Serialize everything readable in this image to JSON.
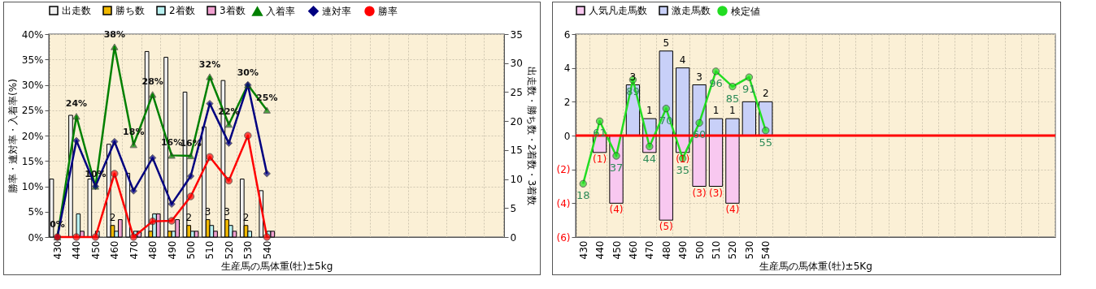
{
  "chart_data": [
    {
      "type": "bar",
      "xlabel": "生産馬の馬体重(牡)±5kg",
      "ylabel": "勝率・連対率・入着率(%)",
      "y2label": "出走数・勝ち数・2着数・3着数",
      "categories": [
        "430",
        "440",
        "450",
        "460",
        "470",
        "480",
        "490",
        "500",
        "510",
        "520",
        "530",
        "540",
        null,
        null,
        null,
        null,
        null,
        null,
        null,
        null,
        null,
        null,
        null,
        null
      ],
      "ylim": [
        0,
        40
      ],
      "yticks": [
        {
          "value": 0,
          "label": "0%"
        },
        {
          "value": 5,
          "label": "5%"
        },
        {
          "value": 10,
          "label": "10%"
        },
        {
          "value": 15,
          "label": "15%"
        },
        {
          "value": 20,
          "label": "20%"
        },
        {
          "value": 25,
          "label": "25%"
        },
        {
          "value": 30,
          "label": "30%"
        },
        {
          "value": 35,
          "label": "35%"
        },
        {
          "value": 40,
          "label": "40%"
        }
      ],
      "y2lim": [
        0,
        35
      ],
      "y2ticks": [
        0,
        5,
        10,
        15,
        20,
        25,
        30,
        35
      ],
      "grid": true,
      "legend": "top",
      "series": [
        {
          "name": "出走数",
          "axis": "y2",
          "color": "#f0f0f0",
          "values": [
            10,
            21,
            10,
            16,
            11,
            32,
            31,
            25,
            19,
            27,
            10,
            8,
            null,
            null,
            null,
            null,
            null,
            null,
            null,
            null,
            null,
            null,
            null,
            null
          ]
        },
        {
          "name": "勝ち数",
          "axis": "y2",
          "color": "#f0b800",
          "values": [
            0,
            0,
            0,
            2,
            0,
            1,
            1,
            2,
            3,
            3,
            2,
            0,
            null,
            null,
            null,
            null,
            null,
            null,
            null,
            null,
            null,
            null,
            null,
            null
          ],
          "value_labels": [
            null,
            null,
            null,
            "2",
            null,
            null,
            null,
            "2",
            "3",
            "3",
            "2",
            null,
            null,
            null,
            null,
            null,
            null,
            null,
            null,
            null,
            null,
            null,
            null,
            null
          ]
        },
        {
          "name": "2着数",
          "axis": "y2",
          "color": "#b8f0f0",
          "values": [
            0,
            4,
            1,
            1,
            1,
            4,
            1,
            1,
            2,
            2,
            1,
            1,
            null,
            null,
            null,
            null,
            null,
            null,
            null,
            null,
            null,
            null,
            null,
            null
          ]
        },
        {
          "name": "3着数",
          "axis": "y2",
          "color": "#f0a0d0",
          "values": [
            0,
            1,
            0,
            3,
            1,
            4,
            3,
            1,
            1,
            1,
            0,
            1,
            null,
            null,
            null,
            null,
            null,
            null,
            null,
            null,
            null,
            null,
            null,
            null
          ]
        },
        {
          "name": "入着率",
          "type": "line",
          "color": "#008000",
          "marker": "triangle",
          "values": [
            0,
            23.8,
            10,
            37.5,
            18.2,
            28.1,
            16.1,
            16,
            31.6,
            22.2,
            30,
            25,
            null,
            null,
            null,
            null,
            null,
            null,
            null,
            null,
            null,
            null,
            null,
            null
          ],
          "value_labels": [
            "0%",
            "24%",
            "10%",
            "38%",
            "18%",
            "28%",
            "16%",
            "16%",
            "32%",
            "22%",
            "30%",
            "25%",
            null,
            null,
            null,
            null,
            null,
            null,
            null,
            null,
            null,
            null,
            null,
            null
          ]
        },
        {
          "name": "連対率",
          "type": "line",
          "color": "#000080",
          "marker": "diamond",
          "values": [
            0,
            19,
            10,
            18.8,
            9.1,
            15.6,
            6.5,
            12,
            26.3,
            18.5,
            30,
            12.5,
            null,
            null,
            null,
            null,
            null,
            null,
            null,
            null,
            null,
            null,
            null,
            null
          ]
        },
        {
          "name": "勝率",
          "type": "line",
          "color": "#ff0000",
          "marker": "circle",
          "values": [
            0,
            0,
            0,
            12.5,
            0,
            3.1,
            3.2,
            8,
            15.8,
            11.1,
            20,
            0,
            null,
            null,
            null,
            null,
            null,
            null,
            null,
            null,
            null,
            null,
            null,
            null
          ]
        }
      ]
    },
    {
      "type": "bar",
      "stacked": true,
      "xlabel": "生産馬の馬体重(牡)±5Kg",
      "categories": [
        "430",
        "440",
        "450",
        "460",
        "470",
        "480",
        "490",
        "500",
        "510",
        "520",
        "530",
        "540",
        null,
        null,
        null,
        null,
        null,
        null,
        null,
        null,
        null,
        null,
        null,
        null,
        null,
        null,
        null,
        null,
        null
      ],
      "ylim": [
        -6,
        6
      ],
      "yticks": [
        {
          "value": -6,
          "label": "(6)"
        },
        {
          "value": -4,
          "label": "(4)"
        },
        {
          "value": -2,
          "label": "(2)"
        },
        0,
        2,
        4,
        6
      ],
      "grid": true,
      "legend": "top",
      "ref_lines": [
        {
          "axis": "y",
          "value": 0,
          "color": "#ff0000"
        }
      ],
      "series": [
        {
          "name": "人気凡走馬数",
          "color": "#f8c8f0",
          "values": [
            null,
            -1,
            -4,
            null,
            -1,
            -5,
            -1,
            -3,
            -3,
            -4,
            null,
            null,
            null,
            null,
            null,
            null,
            null,
            null,
            null,
            null,
            null,
            null,
            null,
            null,
            null,
            null,
            null,
            null,
            null
          ],
          "value_labels": [
            null,
            "(1)",
            "(4)",
            null,
            null,
            "(5)",
            "(1)",
            "(3)",
            "(3)",
            "(4)",
            null,
            null,
            null,
            null,
            null,
            null,
            null,
            null,
            null,
            null,
            null,
            null,
            null,
            null,
            null,
            null,
            null,
            null,
            null
          ]
        },
        {
          "name": "激走馬数",
          "color": "#c8d0f8",
          "values": [
            null,
            null,
            null,
            3,
            1,
            5,
            4,
            3,
            1,
            1,
            2,
            2,
            null,
            null,
            null,
            null,
            null,
            null,
            null,
            null,
            null,
            null,
            null,
            null,
            null,
            null,
            null,
            null,
            null
          ],
          "value_labels": [
            null,
            null,
            null,
            "3",
            "1",
            "5",
            "4",
            "3",
            "1",
            "1",
            null,
            "2",
            null,
            null,
            null,
            null,
            null,
            null,
            null,
            null,
            null,
            null,
            null,
            null,
            null,
            null,
            null,
            null,
            null
          ]
        },
        {
          "name": "検定値",
          "type": "line",
          "color": "#22dd22",
          "marker": "circle",
          "values": [
            -2.85,
            0.85,
            -1.2,
            3.3,
            -0.65,
            1.6,
            -1.35,
            0.75,
            3.8,
            2.9,
            3.45,
            0.3,
            null,
            null,
            null,
            null,
            null,
            null,
            null,
            null,
            null,
            null,
            null,
            null,
            null,
            null,
            null,
            null,
            null
          ]
        }
      ],
      "annotations": [
        {
          "text": "18",
          "x": "430",
          "y": -2.85
        },
        {
          "text": "61",
          "x": "440",
          "y": 0.85
        },
        {
          "text": "37",
          "x": "450",
          "y": -1.2
        },
        {
          "text": "89",
          "x": "460",
          "y": 3.3
        },
        {
          "text": "44",
          "x": "470",
          "y": -0.65
        },
        {
          "text": "70",
          "x": "480",
          "y": 1.6
        },
        {
          "text": "35",
          "x": "490",
          "y": -1.35
        },
        {
          "text": "60",
          "x": "500",
          "y": 0.75
        },
        {
          "text": "96",
          "x": "510",
          "y": 3.8
        },
        {
          "text": "85",
          "x": "520",
          "y": 2.9
        },
        {
          "text": "91",
          "x": "530",
          "y": 3.45
        },
        {
          "text": "55",
          "x": "540",
          "y": 0.3
        }
      ]
    }
  ]
}
